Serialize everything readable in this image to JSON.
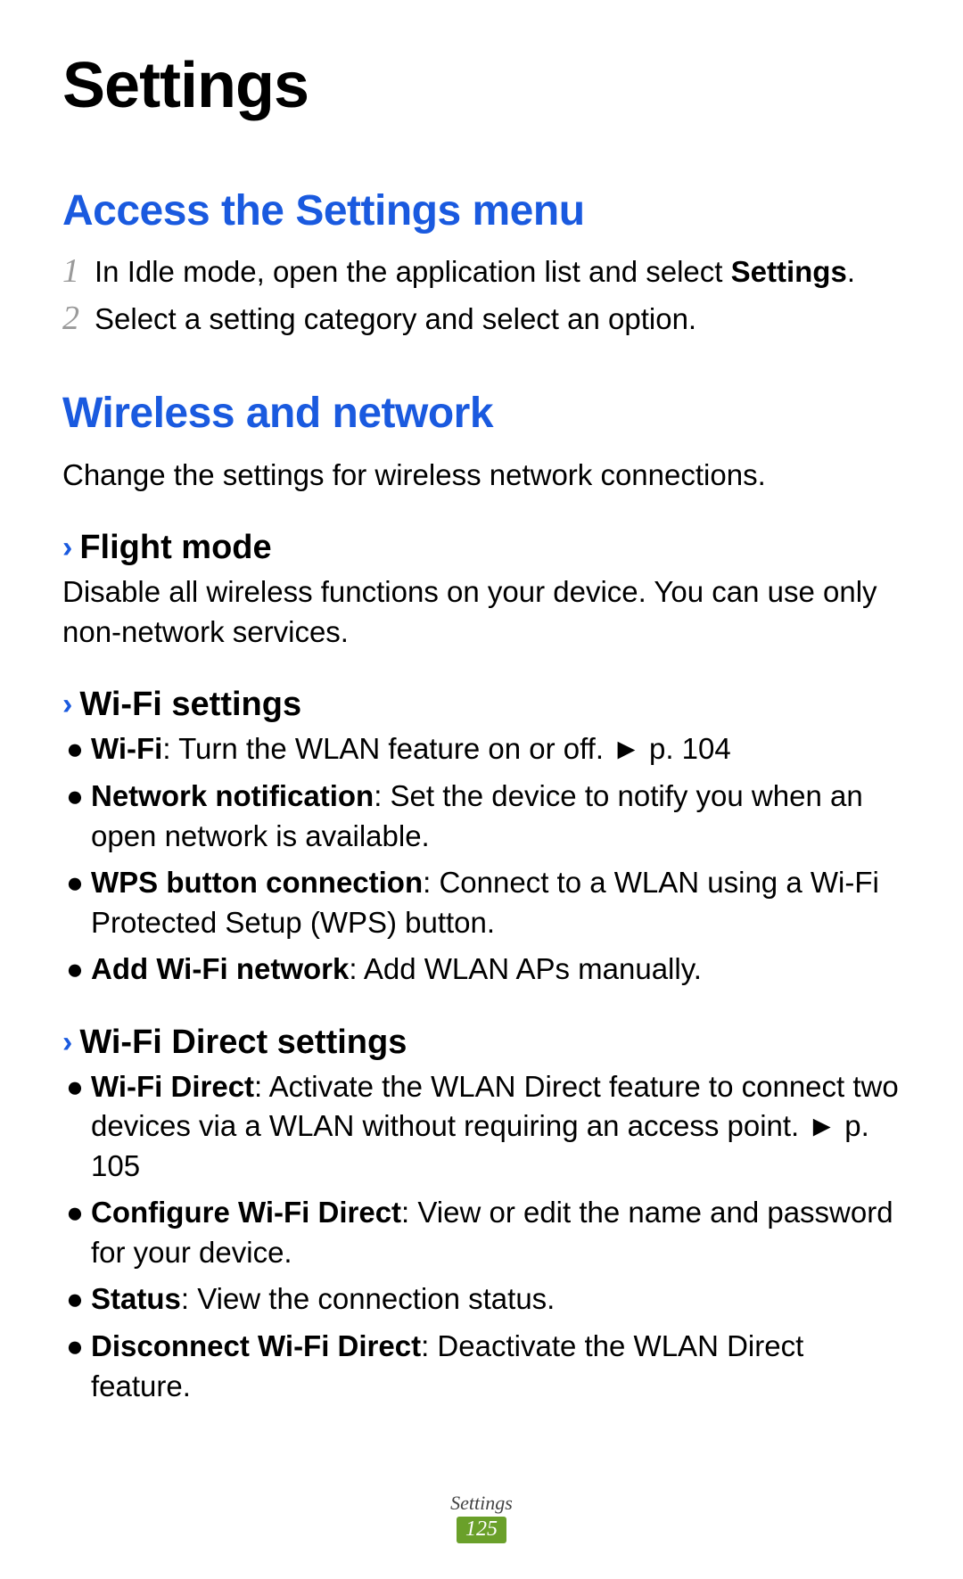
{
  "page": {
    "title": "Settings",
    "footer_label": "Settings",
    "page_number": "125"
  },
  "section1": {
    "heading": "Access the Settings menu",
    "steps": {
      "s1_num": "1",
      "s1_a": "In Idle mode, open the application list and select ",
      "s1_b": "Settings",
      "s1_c": ".",
      "s2_num": "2",
      "s2": "Select a setting category and select an option."
    }
  },
  "section2": {
    "heading": "Wireless and network",
    "intro": "Change the settings for wireless network connections.",
    "sub1": {
      "title": "Flight mode",
      "text": "Disable all wireless functions on your device. You can use only non-network services."
    },
    "sub2": {
      "title": "Wi-Fi settings",
      "b1_a": "Wi-Fi",
      "b1_b": ": Turn the WLAN feature on or off. ► p. 104",
      "b2_a": "Network notification",
      "b2_b": ": Set the device to notify you when an open network is available.",
      "b3_a": "WPS button connection",
      "b3_b": ": Connect to a WLAN using a Wi-Fi Protected Setup (WPS) button.",
      "b4_a": "Add Wi-Fi network",
      "b4_b": ": Add WLAN APs manually."
    },
    "sub3": {
      "title": "Wi-Fi Direct settings",
      "b1_a": "Wi-Fi Direct",
      "b1_b": ": Activate the WLAN Direct feature to connect two devices via a WLAN without requiring an access point. ► p. 105",
      "b2_a": "Configure Wi-Fi Direct",
      "b2_b": ": View or edit the name and password for your device.",
      "b3_a": "Status",
      "b3_b": ": View the connection status.",
      "b4_a": "Disconnect Wi-Fi Direct",
      "b4_b": ": Deactivate the WLAN Direct feature."
    }
  },
  "glyph": {
    "chevron": "›",
    "bullet": "●"
  }
}
